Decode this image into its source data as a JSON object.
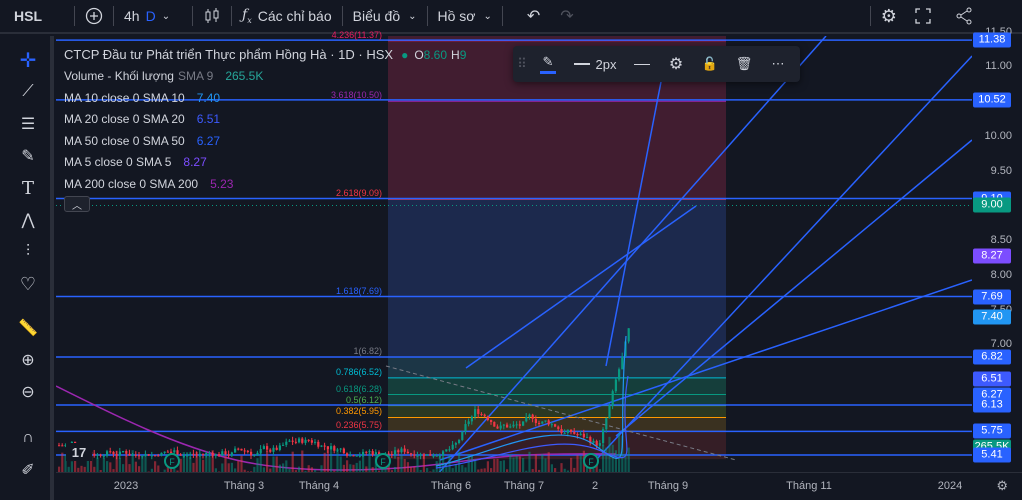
{
  "topbar": {
    "symbol": "HSL",
    "add_icon": "plus-circle-icon",
    "interval": "4h",
    "interval_alt": "D",
    "indicators_label": "Các chỉ báo",
    "chart_type_label": "Biểu đồ",
    "profile_label": "Hồ sơ"
  },
  "legend": {
    "title": "CTCP Đầu tư Phát triển Thực phẩm Hồng Hà · 1D · HSX",
    "ohlc_o": "O",
    "ohlc_o_val": "8.60",
    "ohlc_h": "H",
    "ohlc_h_val": "9",
    "rows": [
      {
        "name": "Volume - Khối lượng",
        "param": "SMA 9",
        "value": "265.5K",
        "color": "#26a69a"
      },
      {
        "name": "MA 10 close 0 SMA 10",
        "param": "",
        "value": "7.40",
        "color": "#2196f3"
      },
      {
        "name": "MA 20 close 0 SMA 20",
        "param": "",
        "value": "6.51",
        "color": "#3d5afe"
      },
      {
        "name": "MA 50 close 0 SMA 50",
        "param": "",
        "value": "6.27",
        "color": "#2962ff"
      },
      {
        "name": "MA 5 close 0 SMA 5",
        "param": "",
        "value": "8.27",
        "color": "#7c4dff"
      },
      {
        "name": "MA 200 close 0 SMA 200",
        "param": "",
        "value": "5.23",
        "color": "#9c27b0"
      }
    ]
  },
  "fib_levels": [
    {
      "label": "4.236(11.37)",
      "price": 11.37,
      "color": "#e91e63"
    },
    {
      "label": "3.618(10.50)",
      "price": 10.5,
      "color": "#9c27b0"
    },
    {
      "label": "2.618(9.09)",
      "price": 9.09,
      "color": "#f23645"
    },
    {
      "label": "1.618(7.69)",
      "price": 7.69,
      "color": "#2962ff"
    },
    {
      "label": "1(6.82)",
      "price": 6.82,
      "color": "#787b86"
    },
    {
      "label": "0.786(6.52)",
      "price": 6.52,
      "color": "#00bcd4"
    },
    {
      "label": "0.618(6.28)",
      "price": 6.28,
      "color": "#089981"
    },
    {
      "label": "0.5(6.12)",
      "price": 6.12,
      "color": "#4caf50"
    },
    {
      "label": "0.382(5.95)",
      "price": 5.95,
      "color": "#ff9800"
    },
    {
      "label": "0.236(5.75)",
      "price": 5.75,
      "color": "#f23645"
    }
  ],
  "price_ticks": [
    "11.50",
    "11.00",
    "10.00",
    "9.50",
    "8.50",
    "8.00",
    "7.00",
    "7.50"
  ],
  "price_badges": [
    {
      "label": "11.38",
      "price": 11.38,
      "color": "#2962ff"
    },
    {
      "label": "10.52",
      "price": 10.52,
      "color": "#2962ff"
    },
    {
      "label": "9.10",
      "price": 9.1,
      "color": "#2962ff"
    },
    {
      "label": "9.00",
      "price": 9.0,
      "color": "#089981"
    },
    {
      "label": "8.27",
      "price": 8.27,
      "color": "#7c4dff"
    },
    {
      "label": "7.69",
      "price": 7.69,
      "color": "#2962ff"
    },
    {
      "label": "7.40",
      "price": 7.4,
      "color": "#2196f3"
    },
    {
      "label": "6.82",
      "price": 6.82,
      "color": "#2962ff"
    },
    {
      "label": "6.51",
      "price": 6.51,
      "color": "#3d5afe"
    },
    {
      "label": "6.27",
      "price": 6.27,
      "color": "#2962ff"
    },
    {
      "label": "6.13",
      "price": 6.13,
      "color": "#2962ff"
    },
    {
      "label": "5.75",
      "price": 5.75,
      "color": "#2962ff"
    },
    {
      "label": "265.5K",
      "price": 5.53,
      "color": "#089981"
    },
    {
      "label": "5.41",
      "price": 5.41,
      "color": "#2962ff"
    }
  ],
  "x_ticks": [
    "2023",
    "Tháng 3",
    "Tháng 4",
    "Tháng 6",
    "Tháng 7",
    "2",
    "Tháng 9",
    "Tháng 11",
    "2024"
  ],
  "floating_toolbar": {
    "width_label": "2px"
  },
  "chart_data": {
    "type": "candlestick",
    "title": "CTCP Đầu tư Phát triển Thực phẩm Hồng Hà · 1D · HSX",
    "ylim": [
      5.35,
      11.6
    ],
    "last_price": 9.0,
    "candles_summary": "price rose from ~5.5 to ~9.0"
  }
}
